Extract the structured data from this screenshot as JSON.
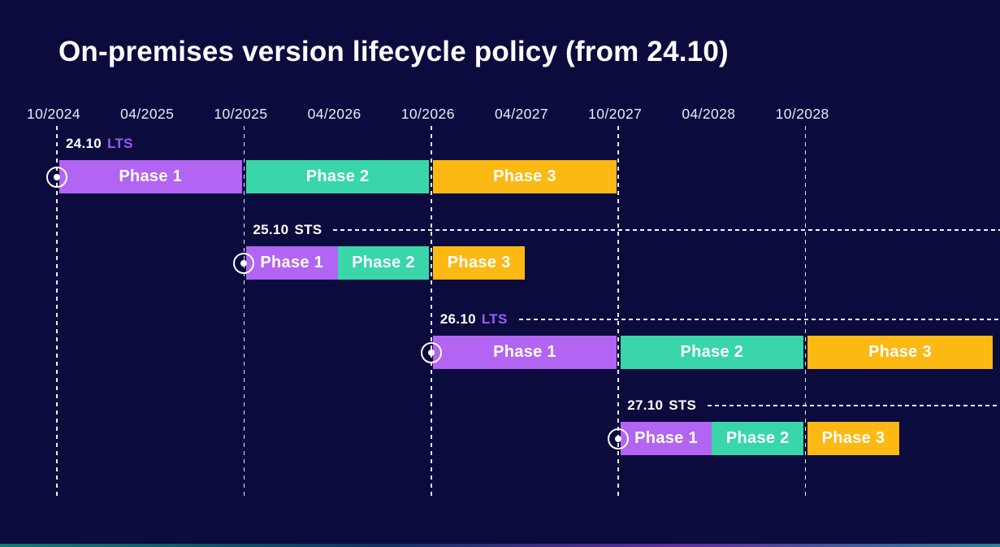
{
  "title": "On-premises version lifecycle policy (from 24.10)",
  "colors": {
    "background": "#0b0b3e",
    "phase1_purple": "#b264f2",
    "phase2_teal": "#38d6a8",
    "phase3_orange": "#fcb813",
    "lts_badge_purple": "#9c5cf5",
    "text_white": "#ffffff",
    "grid_white": "#ffffff",
    "bottom_gradient": [
      "#0e7d72",
      "#123060",
      "#5e2d9a",
      "#2b7f93"
    ]
  },
  "axis": {
    "ticks": [
      {
        "label": "10/2024",
        "month": 0
      },
      {
        "label": "04/2025",
        "month": 6
      },
      {
        "label": "10/2025",
        "month": 12
      },
      {
        "label": "04/2026",
        "month": 18
      },
      {
        "label": "10/2026",
        "month": 24
      },
      {
        "label": "04/2027",
        "month": 30
      },
      {
        "label": "10/2027",
        "month": 36
      },
      {
        "label": "04/2028",
        "month": 42
      },
      {
        "label": "10/2028",
        "month": 48
      }
    ],
    "gridline_months": [
      0,
      12,
      24,
      36,
      48
    ]
  },
  "rows": [
    {
      "version": "24.10",
      "badge": "LTS",
      "leader": false,
      "start_month": 0,
      "phases": [
        {
          "label": "Phase 1",
          "start": 0,
          "end": 12,
          "start_date": "10/2024",
          "end_date": "10/2025"
        },
        {
          "label": "Phase 2",
          "start": 12,
          "end": 24,
          "start_date": "10/2025",
          "end_date": "10/2026"
        },
        {
          "label": "Phase 3",
          "start": 24,
          "end": 36,
          "start_date": "10/2026",
          "end_date": "10/2027"
        }
      ]
    },
    {
      "version": "25.10",
      "badge": "STS",
      "leader": true,
      "start_month": 12,
      "phases": [
        {
          "label": "Phase 1",
          "start": 12,
          "end": 18,
          "start_date": "10/2025",
          "end_date": "04/2026"
        },
        {
          "label": "Phase 2",
          "start": 18,
          "end": 24,
          "start_date": "04/2026",
          "end_date": "10/2026"
        },
        {
          "label": "Phase 3",
          "start": 24,
          "end": 30,
          "start_date": "10/2026",
          "end_date": "04/2027"
        }
      ]
    },
    {
      "version": "26.10",
      "badge": "LTS",
      "leader": true,
      "start_month": 24,
      "phases": [
        {
          "label": "Phase 1",
          "start": 24,
          "end": 36,
          "start_date": "10/2026",
          "end_date": "10/2027"
        },
        {
          "label": "Phase 2",
          "start": 36,
          "end": 48,
          "start_date": "10/2027",
          "end_date": "10/2028"
        },
        {
          "label": "Phase 3",
          "start": 48,
          "end": 60,
          "start_date": "10/2028",
          "end_date": "10/2029"
        }
      ]
    },
    {
      "version": "27.10",
      "badge": "STS",
      "leader": true,
      "start_month": 36,
      "phases": [
        {
          "label": "Phase 1",
          "start": 36,
          "end": 42,
          "start_date": "10/2027",
          "end_date": "04/2028"
        },
        {
          "label": "Phase 2",
          "start": 42,
          "end": 48,
          "start_date": "04/2028",
          "end_date": "10/2028"
        },
        {
          "label": "Phase 3",
          "start": 48,
          "end": 54,
          "start_date": "10/2028",
          "end_date": "04/2029"
        }
      ]
    }
  ],
  "chart_data": {
    "type": "gantt",
    "title": "On-premises version lifecycle policy (from 24.10)",
    "x_axis": {
      "tick_labels": [
        "10/2024",
        "04/2025",
        "10/2025",
        "04/2026",
        "10/2026",
        "04/2027",
        "10/2027",
        "04/2028",
        "10/2028"
      ],
      "range": [
        "10/2024",
        "10/2029"
      ],
      "grid": "dashed vertical lines at each October tick"
    },
    "legend_position": "none",
    "series": [
      {
        "name": "24.10 LTS",
        "phases": [
          {
            "label": "Phase 1",
            "start": "10/2024",
            "end": "10/2025",
            "color": "#b264f2"
          },
          {
            "label": "Phase 2",
            "start": "10/2025",
            "end": "10/2026",
            "color": "#38d6a8"
          },
          {
            "label": "Phase 3",
            "start": "10/2026",
            "end": "10/2027",
            "color": "#fcb813"
          }
        ]
      },
      {
        "name": "25.10 STS",
        "phases": [
          {
            "label": "Phase 1",
            "start": "10/2025",
            "end": "04/2026",
            "color": "#b264f2"
          },
          {
            "label": "Phase 2",
            "start": "04/2026",
            "end": "10/2026",
            "color": "#38d6a8"
          },
          {
            "label": "Phase 3",
            "start": "10/2026",
            "end": "04/2027",
            "color": "#fcb813"
          }
        ]
      },
      {
        "name": "26.10 LTS",
        "phases": [
          {
            "label": "Phase 1",
            "start": "10/2026",
            "end": "10/2027",
            "color": "#b264f2"
          },
          {
            "label": "Phase 2",
            "start": "10/2027",
            "end": "10/2028",
            "color": "#38d6a8"
          },
          {
            "label": "Phase 3",
            "start": "10/2028",
            "end": "10/2029",
            "color": "#fcb813"
          }
        ]
      },
      {
        "name": "27.10 STS",
        "phases": [
          {
            "label": "Phase 1",
            "start": "10/2027",
            "end": "04/2028",
            "color": "#b264f2"
          },
          {
            "label": "Phase 2",
            "start": "04/2028",
            "end": "10/2028",
            "color": "#38d6a8"
          },
          {
            "label": "Phase 3",
            "start": "10/2028",
            "end": "04/2029",
            "color": "#fcb813"
          }
        ]
      }
    ]
  }
}
